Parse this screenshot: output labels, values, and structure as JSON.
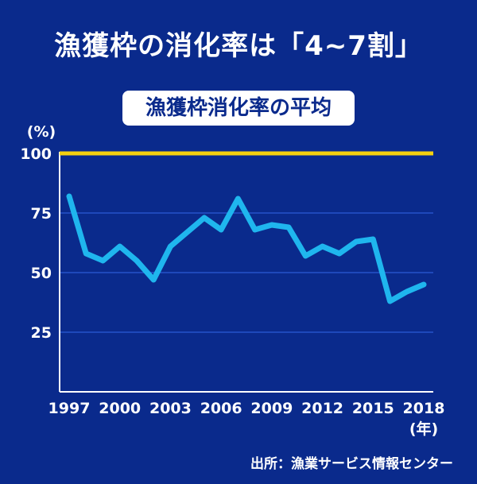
{
  "title": "漁獲枠の消化率は「4~7割」",
  "subtitle": "漁獲枠消化率の平均",
  "source": "出所：漁業サービス情報センター",
  "colors": {
    "background": "#0a2a8c",
    "line": "#1fb6ee",
    "reference": "#f5d10f",
    "grid": "#2a5bd6",
    "text": "#ffffff"
  },
  "chart_data": {
    "type": "line",
    "ylabel": "(%)",
    "xlabel": "(年)",
    "ylim": [
      0,
      100
    ],
    "xlim": [
      1997,
      2018
    ],
    "y_ticks": [
      25,
      50,
      75,
      100
    ],
    "x_ticks": [
      1997,
      2000,
      2003,
      2006,
      2009,
      2012,
      2015,
      2018
    ],
    "x_tick_labels": [
      "1997",
      "2000",
      "2003",
      "2006",
      "2009",
      "2012",
      "2015",
      "2018"
    ],
    "reference_line": 100,
    "grid": true,
    "series": [
      {
        "x": [
          1997,
          1998,
          1999,
          2000,
          2001,
          2002,
          2003,
          2004,
          2005,
          2006,
          2007,
          2008,
          2009,
          2010,
          2011,
          2012,
          2013,
          2014,
          2015,
          2016,
          2017,
          2018
        ],
        "values": [
          82,
          58,
          55,
          61,
          55,
          47,
          61,
          67,
          73,
          68,
          81,
          68,
          70,
          69,
          57,
          61,
          58,
          63,
          64,
          38,
          42,
          45
        ]
      }
    ]
  }
}
